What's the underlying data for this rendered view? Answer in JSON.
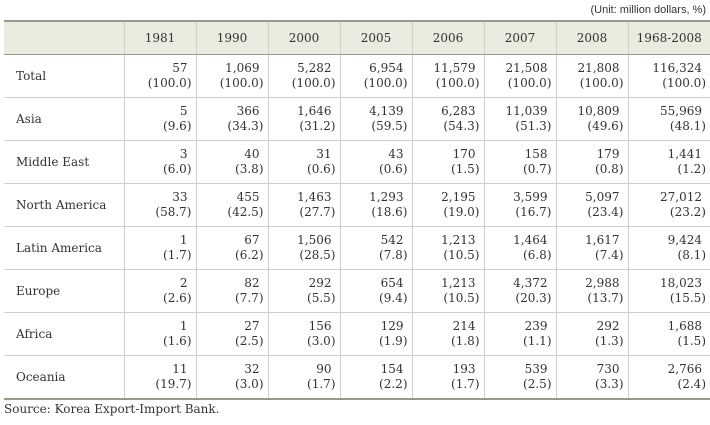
{
  "unit_note": "(Unit: million dollars, %)",
  "header": {
    "blank": "",
    "years": [
      "1981",
      "1990",
      "2000",
      "2005",
      "2006",
      "2007",
      "2008",
      "1968-2008"
    ]
  },
  "rows": [
    {
      "region": "Total",
      "values": [
        "57",
        "1,069",
        "5,282",
        "6,954",
        "11,579",
        "21,508",
        "21,808",
        "116,324"
      ],
      "shares": [
        "(100.0)",
        "(100.0)",
        "(100.0)",
        "(100.0)",
        "(100.0)",
        "(100.0)",
        "(100.0)",
        "(100.0)"
      ]
    },
    {
      "region": "Asia",
      "values": [
        "5",
        "366",
        "1,646",
        "4,139",
        "6,283",
        "11,039",
        "10,809",
        "55,969"
      ],
      "shares": [
        "(9.6)",
        "(34.3)",
        "(31.2)",
        "(59.5)",
        "(54.3)",
        "(51.3)",
        "(49.6)",
        "(48.1)"
      ]
    },
    {
      "region": "Middle East",
      "values": [
        "3",
        "40",
        "31",
        "43",
        "170",
        "158",
        "179",
        "1,441"
      ],
      "shares": [
        "(6.0)",
        "(3.8)",
        "(0.6)",
        "(0.6)",
        "(1.5)",
        "(0.7)",
        "(0.8)",
        "(1.2)"
      ]
    },
    {
      "region": "North America",
      "values": [
        "33",
        "455",
        "1,463",
        "1,293",
        "2,195",
        "3,599",
        "5,097",
        "27,012"
      ],
      "shares": [
        "(58.7)",
        "(42.5)",
        "(27.7)",
        "(18.6)",
        "(19.0)",
        "(16.7)",
        "(23.4)",
        "(23.2)"
      ]
    },
    {
      "region": "Latin America",
      "values": [
        "1",
        "67",
        "1,506",
        "542",
        "1,213",
        "1,464",
        "1,617",
        "9,424"
      ],
      "shares": [
        "(1.7)",
        "(6.2)",
        "(28.5)",
        "(7.8)",
        "(10.5)",
        "(6.8)",
        "(7.4)",
        "(8.1)"
      ]
    },
    {
      "region": "Europe",
      "values": [
        "2",
        "82",
        "292",
        "654",
        "1,213",
        "4,372",
        "2,988",
        "18,023"
      ],
      "shares": [
        "(2.6)",
        "(7.7)",
        "(5.5)",
        "(9.4)",
        "(10.5)",
        "(20.3)",
        "(13.7)",
        "(15.5)"
      ]
    },
    {
      "region": "Africa",
      "values": [
        "1",
        "27",
        "156",
        "129",
        "214",
        "239",
        "292",
        "1,688"
      ],
      "shares": [
        "(1.6)",
        "(2.5)",
        "(3.0)",
        "(1.9)",
        "(1.8)",
        "(1.1)",
        "(1.3)",
        "(1.5)"
      ]
    },
    {
      "region": "Oceania",
      "values": [
        "11",
        "32",
        "90",
        "154",
        "193",
        "539",
        "730",
        "2,766"
      ],
      "shares": [
        "(19.7)",
        "(3.0)",
        "(1.7)",
        "(2.2)",
        "(1.7)",
        "(2.5)",
        "(3.3)",
        "(2.4)"
      ]
    }
  ],
  "source": "Source: Korea Export-Import Bank."
}
